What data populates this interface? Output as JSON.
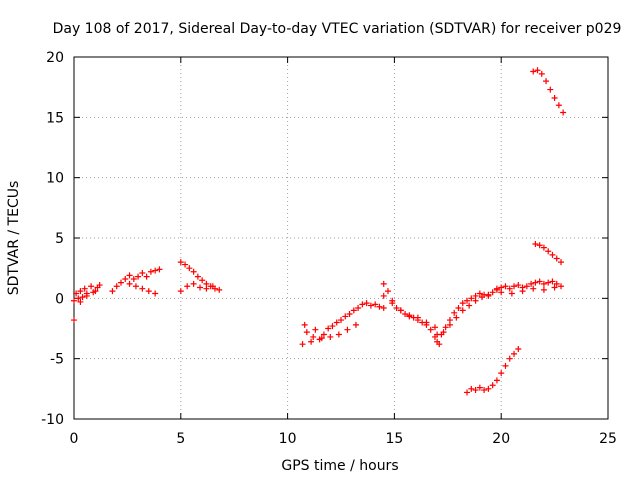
{
  "chart_data": {
    "type": "scatter",
    "title": "Day 108 of 2017, Sidereal Day-to-day VTEC variation (SDTVAR) for receiver p029",
    "xlabel": "GPS time / hours",
    "ylabel": "SDTVAR / TECUs",
    "xlim": [
      0,
      25
    ],
    "ylim": [
      -10,
      20
    ],
    "xticks": [
      "0",
      "5",
      "10",
      "15",
      "20",
      "25"
    ],
    "yticks": [
      "-10",
      "-5",
      "0",
      "5",
      "10",
      "15",
      "20"
    ],
    "grid": true,
    "marker": "+",
    "color": "#ff0000",
    "series": [
      {
        "name": "p029 SDTVAR",
        "x": [
          0.0,
          0.1,
          0.2,
          0.3,
          0.4,
          0.5,
          0.6,
          0.8,
          1.0,
          1.2,
          0.3,
          0.6,
          0.9,
          1.1,
          1.8,
          2.0,
          2.2,
          2.4,
          2.6,
          2.8,
          3.0,
          3.2,
          3.4,
          3.6,
          3.8,
          4.0,
          2.6,
          2.9,
          3.2,
          3.5,
          3.8,
          5.0,
          5.2,
          5.4,
          5.6,
          5.8,
          6.0,
          6.2,
          6.4,
          6.6,
          5.0,
          5.3,
          5.6,
          5.9,
          6.2,
          6.5,
          6.8,
          10.7,
          10.9,
          11.1,
          11.3,
          11.5,
          11.7,
          11.9,
          12.1,
          12.3,
          12.5,
          12.7,
          12.9,
          13.1,
          13.3,
          13.5,
          13.7,
          13.9,
          14.1,
          14.3,
          14.5,
          10.8,
          11.2,
          11.6,
          12.0,
          12.4,
          12.8,
          13.2,
          14.5,
          14.7,
          14.9,
          15.1,
          15.3,
          15.5,
          15.7,
          15.9,
          16.1,
          16.3,
          16.5,
          16.7,
          16.9,
          17.1,
          14.5,
          14.9,
          15.3,
          15.7,
          16.1,
          16.5,
          16.9,
          17.0,
          17.2,
          17.4,
          17.6,
          17.8,
          18.0,
          18.2,
          18.4,
          18.6,
          18.8,
          19.0,
          19.2,
          19.4,
          19.6,
          19.8,
          17.0,
          17.3,
          17.6,
          17.9,
          18.2,
          18.5,
          18.8,
          19.1,
          19.4,
          19.8,
          20.0,
          20.2,
          20.4,
          20.6,
          20.8,
          21.0,
          21.2,
          21.4,
          21.6,
          21.8,
          22.0,
          22.2,
          22.4,
          22.6,
          22.8,
          20.0,
          20.5,
          21.0,
          21.5,
          22.0,
          22.5,
          18.4,
          18.6,
          18.8,
          19.0,
          19.2,
          19.4,
          19.6,
          19.8,
          20.0,
          20.2,
          20.4,
          20.6,
          20.8,
          21.6,
          21.8,
          22.0,
          22.2,
          22.4,
          22.6,
          22.8,
          21.5,
          21.7,
          21.9,
          22.1,
          22.3,
          22.5,
          22.7,
          22.9,
          0.0
        ],
        "y": [
          -0.2,
          0.4,
          0.0,
          0.6,
          0.1,
          0.8,
          0.4,
          1.0,
          0.6,
          1.1,
          -0.3,
          0.2,
          0.5,
          0.9,
          0.6,
          1.0,
          1.3,
          1.6,
          1.9,
          1.6,
          1.8,
          2.1,
          1.8,
          2.2,
          2.3,
          2.4,
          1.2,
          1.0,
          0.8,
          0.6,
          0.4,
          3.0,
          2.8,
          2.5,
          2.2,
          1.8,
          1.5,
          1.2,
          1.0,
          0.8,
          0.6,
          1.0,
          1.2,
          0.9,
          0.8,
          1.0,
          0.7,
          -3.8,
          -2.8,
          -3.6,
          -2.6,
          -3.4,
          -3.0,
          -2.5,
          -2.3,
          -2.0,
          -1.8,
          -1.5,
          -1.3,
          -1.0,
          -0.8,
          -0.5,
          -0.4,
          -0.6,
          -0.5,
          -0.7,
          -0.8,
          -2.2,
          -3.2,
          -3.3,
          -3.2,
          -3.0,
          -2.6,
          -2.2,
          1.2,
          0.6,
          -0.2,
          -0.8,
          -1.0,
          -1.3,
          -1.5,
          -1.6,
          -1.8,
          -2.0,
          -2.2,
          -2.6,
          -3.2,
          -3.8,
          0.2,
          -0.4,
          -1.0,
          -1.4,
          -1.6,
          -2.0,
          -2.4,
          -3.6,
          -3.0,
          -2.4,
          -1.8,
          -1.2,
          -0.8,
          -0.4,
          -0.2,
          0.0,
          0.2,
          0.4,
          0.3,
          0.2,
          0.5,
          0.7,
          -3.0,
          -2.8,
          -2.2,
          -1.6,
          -1.0,
          -0.6,
          -0.2,
          0.1,
          0.3,
          0.8,
          0.9,
          1.0,
          0.8,
          1.0,
          1.1,
          0.9,
          1.0,
          1.2,
          1.3,
          1.4,
          1.2,
          1.3,
          1.4,
          1.2,
          1.0,
          0.5,
          0.4,
          0.6,
          0.8,
          0.7,
          0.9,
          -7.8,
          -7.5,
          -7.6,
          -7.4,
          -7.6,
          -7.5,
          -7.2,
          -6.8,
          -6.2,
          -5.6,
          -5.0,
          -4.6,
          -4.2,
          4.5,
          4.4,
          4.2,
          3.9,
          3.6,
          3.3,
          3.0,
          18.8,
          18.9,
          18.6,
          18.0,
          17.3,
          16.6,
          16.0,
          15.4,
          -1.8
        ]
      }
    ]
  }
}
